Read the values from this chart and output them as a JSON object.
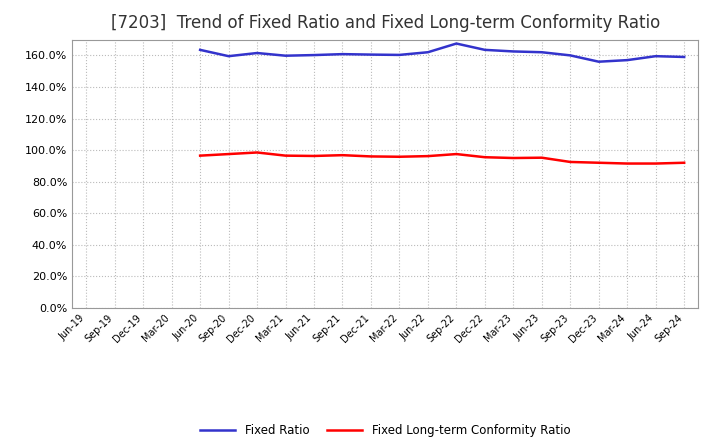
{
  "title": "[7203]  Trend of Fixed Ratio and Fixed Long-term Conformity Ratio",
  "fixed_ratio": {
    "values_x": [
      4,
      5,
      6,
      7,
      8,
      9,
      10,
      11,
      12,
      13,
      14,
      15,
      16,
      17,
      18,
      19,
      20,
      21
    ],
    "values_y": [
      163.5,
      159.5,
      161.5,
      159.8,
      160.2,
      160.8,
      160.5,
      160.3,
      162.0,
      167.5,
      163.5,
      162.5,
      162.0,
      160.0,
      156.0,
      157.0,
      159.5,
      159.0
    ],
    "color": "#3333CC"
  },
  "fixed_lt_ratio": {
    "values_x": [
      4,
      5,
      6,
      7,
      8,
      9,
      10,
      11,
      12,
      13,
      14,
      15,
      16,
      17,
      18,
      19,
      20,
      21
    ],
    "values_y": [
      96.5,
      97.5,
      98.5,
      96.5,
      96.3,
      96.8,
      96.0,
      95.8,
      96.2,
      97.5,
      95.5,
      95.0,
      95.2,
      92.5,
      92.0,
      91.5,
      91.5,
      92.0
    ],
    "color": "#FF0000"
  },
  "x_labels": [
    "Jun-19",
    "Sep-19",
    "Dec-19",
    "Mar-20",
    "Jun-20",
    "Sep-20",
    "Dec-20",
    "Mar-21",
    "Jun-21",
    "Sep-21",
    "Dec-21",
    "Mar-22",
    "Jun-22",
    "Sep-22",
    "Dec-22",
    "Mar-23",
    "Jun-23",
    "Sep-23",
    "Dec-23",
    "Mar-24",
    "Jun-24",
    "Sep-24"
  ],
  "ylim": [
    0,
    170
  ],
  "yticks": [
    0,
    20,
    40,
    60,
    80,
    100,
    120,
    140,
    160
  ],
  "ytick_labels": [
    "0.0%",
    "20.0%",
    "40.0%",
    "60.0%",
    "80.0%",
    "100.0%",
    "120.0%",
    "140.0%",
    "160.0%"
  ],
  "background_color": "#FFFFFF",
  "plot_background": "#FFFFFF",
  "grid_color": "#BBBBBB",
  "legend_fixed_ratio": "Fixed Ratio",
  "legend_fixed_lt": "Fixed Long-term Conformity Ratio",
  "title_fontsize": 12,
  "line_width": 1.8
}
